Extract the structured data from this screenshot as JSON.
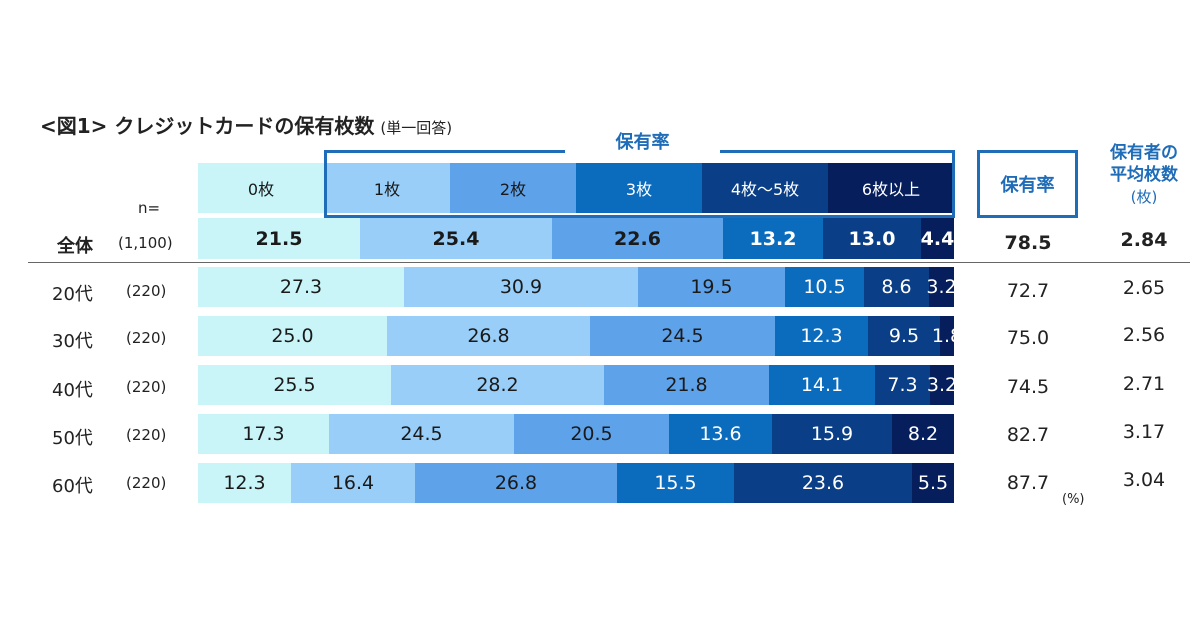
{
  "title": "<図1> クレジットカードの保有枚数",
  "title_note": "(単一回答)",
  "n_label": "n=",
  "group_label": "保有率",
  "rate_header": "保有率",
  "avg_header_line1": "保有者の",
  "avg_header_line2": "平均枚数",
  "avg_header_unit": "(枚)",
  "percent_unit": "(%)",
  "colors": [
    "#c9f5f9",
    "#98cef8",
    "#5ea2ea",
    "#0b6bbd",
    "#0a3e86",
    "#061f5c"
  ],
  "chart_data": {
    "type": "bar",
    "orientation": "horizontal",
    "stacked": true,
    "categories": [
      "全体",
      "20代",
      "30代",
      "40代",
      "50代",
      "60代"
    ],
    "n": [
      "(1,100)",
      "(220)",
      "(220)",
      "(220)",
      "(220)",
      "(220)"
    ],
    "series": [
      {
        "name": "0枚",
        "values": [
          21.5,
          27.3,
          25.0,
          25.5,
          17.3,
          12.3
        ]
      },
      {
        "name": "1枚",
        "values": [
          25.4,
          30.9,
          26.8,
          28.2,
          24.5,
          16.4
        ]
      },
      {
        "name": "2枚",
        "values": [
          22.6,
          19.5,
          24.5,
          21.8,
          20.5,
          26.8
        ]
      },
      {
        "name": "3枚",
        "values": [
          13.2,
          10.5,
          12.3,
          14.1,
          13.6,
          15.5
        ]
      },
      {
        "name": "4枚～5枚",
        "values": [
          13.0,
          8.6,
          9.5,
          7.3,
          15.9,
          23.6
        ]
      },
      {
        "name": "6枚以上",
        "values": [
          4.4,
          3.2,
          1.8,
          3.2,
          8.2,
          5.5
        ]
      }
    ],
    "labels": [
      [
        "21.5",
        "25.4",
        "22.6",
        "13.2",
        "13.0",
        "4.4"
      ],
      [
        "27.3",
        "30.9",
        "19.5",
        "10.5",
        "8.6",
        "3.2"
      ],
      [
        "25.0",
        "26.8",
        "24.5",
        "12.3",
        "9.5",
        "1.8"
      ],
      [
        "25.5",
        "28.2",
        "21.8",
        "14.1",
        "7.3",
        "3.2"
      ],
      [
        "17.3",
        "24.5",
        "20.5",
        "13.6",
        "15.9",
        "8.2"
      ],
      [
        "12.3",
        "16.4",
        "26.8",
        "15.5",
        "23.6",
        "5.5"
      ]
    ],
    "ownership_rate": [
      "78.5",
      "72.7",
      "75.0",
      "74.5",
      "82.7",
      "87.7"
    ],
    "avg_cards": [
      "2.84",
      "2.65",
      "2.56",
      "2.71",
      "3.17",
      "3.04"
    ],
    "xlim": [
      0,
      100
    ],
    "unit": "%"
  }
}
